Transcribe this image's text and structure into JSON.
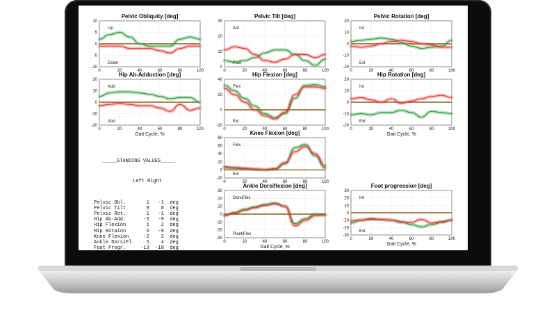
{
  "device": {
    "type": "laptop"
  },
  "colors": {
    "left": "#e53935",
    "right": "#2e9e3a",
    "normal": "#8a5a1e"
  },
  "standing_values": {
    "title": "STANDING VALUES",
    "header": "Left Right",
    "rows": [
      {
        "name": "Pelvic Obl.",
        "left": "1",
        "right": "-1",
        "unit": "deg"
      },
      {
        "name": "Pelvic Tilt",
        "left": "8",
        "right": "8",
        "unit": "deg"
      },
      {
        "name": "Pelvic Rot.",
        "left": "1",
        "right": "-1",
        "unit": "deg"
      },
      {
        "name": "Hip Ab-Add.",
        "left": "-5",
        "right": "-9",
        "unit": "deg"
      },
      {
        "name": "Hip Flexion",
        "left": "1",
        "right": "2",
        "unit": "deg"
      },
      {
        "name": "Hip Rotaion",
        "left": "6",
        "right": "-9",
        "unit": "deg"
      },
      {
        "name": "Knee Flexion",
        "left": "-2",
        "right": "2",
        "unit": "deg"
      },
      {
        "name": "Ankle DorsiFl.",
        "left": "5",
        "right": "4",
        "unit": "deg"
      },
      {
        "name": "Foot Progr.",
        "left": "-13",
        "right": "-18",
        "unit": "deg"
      }
    ]
  },
  "chart_data": [
    {
      "id": "pelvic-obliquity",
      "type": "line",
      "title": "Pelvic Obliquity [deg]",
      "ylim": [
        -10,
        10
      ],
      "yticks": [
        "10",
        "5",
        "0",
        "-5",
        "-10"
      ],
      "xticks": [
        "0",
        "20",
        "40",
        "60",
        "80",
        "100"
      ],
      "xlabel": "",
      "annotations": [
        "Up",
        "Down"
      ],
      "x": [
        0,
        10,
        20,
        30,
        40,
        50,
        60,
        70,
        80,
        90,
        100
      ],
      "series": [
        {
          "name": "Right",
          "values": [
            2,
            4,
            5,
            3,
            0,
            -1,
            -1,
            -1,
            2,
            3,
            2
          ]
        },
        {
          "name": "Left",
          "values": [
            -1,
            -1,
            -1,
            -2,
            -2,
            -2,
            -3,
            -4,
            -2,
            -1,
            -1
          ]
        }
      ]
    },
    {
      "id": "pelvic-tilt",
      "type": "line",
      "title": "Pelvic Tilt [deg]",
      "ylim": [
        0,
        30
      ],
      "yticks": [
        "30",
        "20",
        "10",
        "0"
      ],
      "xticks": [
        "0",
        "20",
        "40",
        "60",
        "80",
        "100"
      ],
      "xlabel": "",
      "annotations": [
        "Ant",
        "Post"
      ],
      "x": [
        0,
        10,
        20,
        30,
        40,
        50,
        60,
        70,
        80,
        90,
        100
      ],
      "series": [
        {
          "name": "Right",
          "values": [
            4,
            3,
            4,
            6,
            9,
            11,
            11,
            8,
            4,
            1,
            5
          ]
        },
        {
          "name": "Left",
          "values": [
            11,
            13,
            12,
            8,
            4,
            3,
            5,
            8,
            8,
            6,
            8
          ]
        }
      ]
    },
    {
      "id": "pelvic-rotation",
      "type": "line",
      "title": "Pelvic Rotation [deg]",
      "ylim": [
        -20,
        20
      ],
      "yticks": [
        "20",
        "10",
        "0",
        "-10",
        "-20"
      ],
      "xticks": [
        "0",
        "20",
        "40",
        "60",
        "80",
        "100"
      ],
      "xlabel": "",
      "annotations": [
        "Int",
        "Ext"
      ],
      "x": [
        0,
        10,
        20,
        30,
        40,
        50,
        60,
        70,
        80,
        90,
        100
      ],
      "series": [
        {
          "name": "Right",
          "values": [
            2,
            3,
            4,
            5,
            4,
            1,
            -2,
            -4,
            -3,
            -2,
            3
          ]
        },
        {
          "name": "Left",
          "values": [
            -2,
            -3,
            -2,
            0,
            2,
            3,
            2,
            0,
            -1,
            -3,
            -3
          ]
        }
      ]
    },
    {
      "id": "hip-ab-adduction",
      "type": "line",
      "title": "Hip Ab-Adduction [deg]",
      "ylim": [
        -20,
        20
      ],
      "yticks": [
        "20",
        "10",
        "0",
        "-10",
        "-20"
      ],
      "xticks": [
        "0",
        "20",
        "40",
        "60",
        "80",
        "100"
      ],
      "xlabel": "Gait Cycle, %",
      "annotations": [
        "Add",
        "Abd"
      ],
      "x": [
        0,
        10,
        20,
        30,
        40,
        50,
        60,
        70,
        80,
        90,
        100
      ],
      "series": [
        {
          "name": "Right",
          "values": [
            5,
            8,
            9,
            9,
            8,
            7,
            5,
            3,
            4,
            4,
            0
          ]
        },
        {
          "name": "Left",
          "values": [
            -3,
            -2,
            -1,
            -2,
            -3,
            -3,
            -5,
            -8,
            -2,
            -7,
            -5
          ]
        }
      ]
    },
    {
      "id": "hip-flexion",
      "type": "line",
      "title": "Hip Flexion [deg]",
      "ylim": [
        -20,
        40
      ],
      "yticks": [
        "40",
        "20",
        "0",
        "-20"
      ],
      "xticks": [
        "0",
        "20",
        "40",
        "60",
        "80",
        "100"
      ],
      "xlabel": "",
      "annotations": [
        "Flex",
        "Ext"
      ],
      "x": [
        0,
        10,
        20,
        30,
        40,
        50,
        60,
        70,
        80,
        90,
        100
      ],
      "series": [
        {
          "name": "Right",
          "values": [
            32,
            25,
            15,
            5,
            -5,
            -10,
            -5,
            15,
            32,
            33,
            30
          ]
        },
        {
          "name": "Left",
          "values": [
            28,
            20,
            10,
            0,
            -8,
            -12,
            -3,
            20,
            30,
            30,
            28
          ]
        }
      ]
    },
    {
      "id": "hip-rotation",
      "type": "line",
      "title": "Hip Rotation [deg]",
      "ylim": [
        -20,
        20
      ],
      "yticks": [
        "20",
        "10",
        "0",
        "-10",
        "-20"
      ],
      "xticks": [
        "0",
        "20",
        "40",
        "60",
        "80",
        "100"
      ],
      "xlabel": "Gait Cycle, %",
      "annotations": [
        "Int",
        "Ext"
      ],
      "x": [
        0,
        10,
        20,
        30,
        40,
        50,
        60,
        70,
        80,
        90,
        100
      ],
      "series": [
        {
          "name": "Right",
          "values": [
            -11,
            -10,
            -11,
            -9,
            -9,
            -7,
            -9,
            -13,
            -8,
            -9,
            -10
          ]
        },
        {
          "name": "Left",
          "values": [
            3,
            4,
            2,
            0,
            3,
            -1,
            1,
            3,
            5,
            6,
            4
          ]
        }
      ]
    },
    {
      "id": "knee-flexion",
      "type": "line",
      "title": "Knee Flexion [deg]",
      "ylim": [
        -20,
        80
      ],
      "yticks": [
        "80",
        "60",
        "40",
        "20",
        "0",
        "-20"
      ],
      "xticks": [
        "0",
        "20",
        "40",
        "60",
        "80",
        "100"
      ],
      "xlabel": "",
      "annotations": [
        "Flex",
        "Ext"
      ],
      "x": [
        0,
        10,
        20,
        30,
        40,
        50,
        60,
        70,
        80,
        90,
        100
      ],
      "series": [
        {
          "name": "Right",
          "values": [
            5,
            4,
            3,
            2,
            0,
            2,
            15,
            55,
            63,
            35,
            5
          ]
        },
        {
          "name": "Left",
          "values": [
            8,
            6,
            4,
            2,
            1,
            3,
            18,
            45,
            58,
            40,
            10
          ]
        }
      ]
    },
    {
      "id": "ankle-dorsiflexion",
      "type": "line",
      "title": "Ankle Dorsiflexion [deg]",
      "ylim": [
        -30,
        30
      ],
      "yticks": [
        "30",
        "20",
        "10",
        "0",
        "-10",
        "-20",
        "-30"
      ],
      "xticks": [
        "0",
        "20",
        "40",
        "60",
        "80",
        "100"
      ],
      "xlabel": "Gait Cycle, %",
      "annotations": [
        "DorsiFlex",
        "PlantiFlex"
      ],
      "x": [
        0,
        10,
        20,
        30,
        40,
        50,
        60,
        70,
        80,
        90,
        100
      ],
      "series": [
        {
          "name": "Right",
          "values": [
            -2,
            2,
            6,
            9,
            12,
            14,
            10,
            -12,
            -6,
            0,
            -1
          ]
        },
        {
          "name": "Left",
          "values": [
            -1,
            1,
            5,
            8,
            11,
            13,
            10,
            -15,
            -8,
            -2,
            -1
          ]
        }
      ]
    },
    {
      "id": "foot-progression",
      "type": "line",
      "title": "Foot progression [deg]",
      "ylim": [
        -30,
        30
      ],
      "yticks": [
        "30",
        "20",
        "10",
        "0",
        "-10",
        "-20",
        "-30"
      ],
      "xticks": [
        "0",
        "20",
        "40",
        "60",
        "80",
        "100"
      ],
      "xlabel": "Gait Cycle, %",
      "annotations": [
        "Int",
        "Ext"
      ],
      "x": [
        0,
        10,
        20,
        30,
        40,
        50,
        60,
        70,
        80,
        90,
        100
      ],
      "series": [
        {
          "name": "Right",
          "values": [
            -14,
            -10,
            -9,
            -9,
            -10,
            -12,
            -16,
            -19,
            -16,
            -13,
            -10
          ]
        },
        {
          "name": "Left",
          "values": [
            -11,
            -10,
            -8,
            -9,
            -10,
            -13,
            -13,
            -9,
            -14,
            -12,
            -10
          ]
        }
      ]
    }
  ]
}
